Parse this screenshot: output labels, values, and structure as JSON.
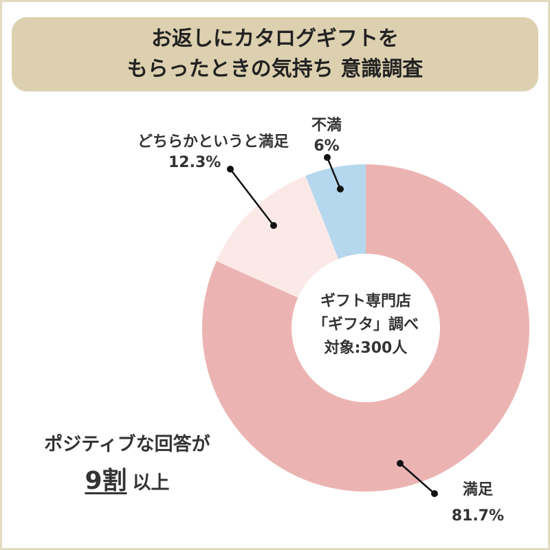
{
  "title": {
    "line1": "お返しにカタログギフトを",
    "line2": "もらったときの気持ち 意識調査"
  },
  "colors": {
    "title_bg": "#ddd0b0",
    "border": "#e2dbbf",
    "leader": "#111111"
  },
  "chart_data": {
    "type": "pie",
    "donut": true,
    "start": "12 o'clock, clockwise",
    "slices": [
      {
        "label": "満足",
        "value": 81.7,
        "value_label": "81.7%",
        "color": "#ebb4b2"
      },
      {
        "label": "どちらかというと満足",
        "value": 12.3,
        "value_label": "12.3%",
        "color": "#fbe9e8"
      },
      {
        "label": "不満",
        "value": 6,
        "value_label": "6%",
        "color": "#b5d8ef"
      }
    ],
    "center_text": {
      "line1": "ギフト専門店",
      "line2": "「ギフタ」調べ",
      "line3": "対象:300人"
    }
  },
  "callout": {
    "line1": "ポジティブな回答が",
    "emphasis": "9割",
    "suffix": "以上"
  }
}
